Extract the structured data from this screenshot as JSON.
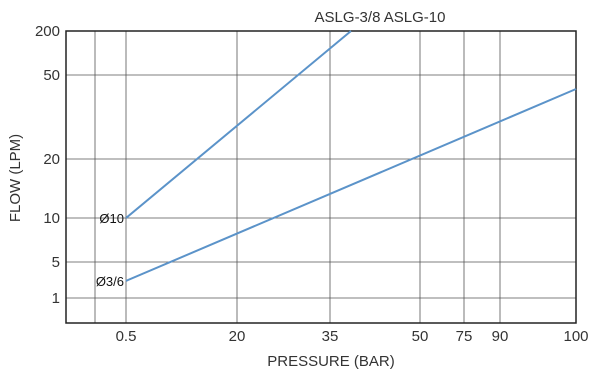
{
  "chart_data": {
    "type": "line",
    "title": "ASLG-3/8 ASLG-10",
    "xlabel": "PRESSURE (BAR)",
    "ylabel": "FLOW  (LPM)",
    "x_ticks": [
      "0.5",
      "20",
      "35",
      "50",
      "75",
      "90",
      "100"
    ],
    "y_ticks": [
      "200",
      "50",
      "20",
      "10",
      "5",
      "1"
    ],
    "grid": true,
    "note": "Axes are non-uniform: x and y positions follow the printed tick labels.",
    "series": [
      {
        "name": "Ø10",
        "x": [
          0.5,
          38.5
        ],
        "y": [
          10,
          200
        ]
      },
      {
        "name": "Ø3/6",
        "x": [
          0.5,
          100
        ],
        "y": [
          2.9,
          45
        ]
      }
    ],
    "line_color": "#5b93c9"
  }
}
